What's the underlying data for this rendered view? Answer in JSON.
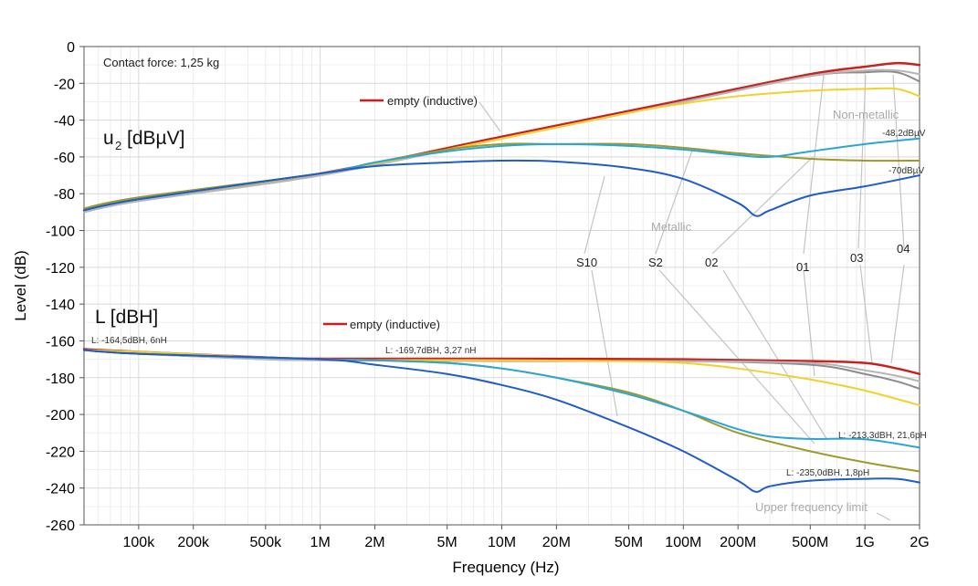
{
  "chart_data": {
    "type": "line",
    "title": "",
    "xlabel": "Frequency (Hz)",
    "ylabel": "Level (dB)",
    "xscale": "log",
    "xlim": [
      50000,
      2000000000
    ],
    "ylim": [
      -260,
      0
    ],
    "grid": true,
    "x_ticks": [
      {
        "value": 100000,
        "label": "100k"
      },
      {
        "value": 200000,
        "label": "200k"
      },
      {
        "value": 500000,
        "label": "500k"
      },
      {
        "value": 1000000,
        "label": "1M"
      },
      {
        "value": 2000000,
        "label": "2M"
      },
      {
        "value": 5000000,
        "label": "5M"
      },
      {
        "value": 10000000,
        "label": "10M"
      },
      {
        "value": 20000000,
        "label": "20M"
      },
      {
        "value": 50000000,
        "label": "50M"
      },
      {
        "value": 100000000,
        "label": "100M"
      },
      {
        "value": 200000000,
        "label": "200M"
      },
      {
        "value": 500000000,
        "label": "500M"
      },
      {
        "value": 1000000000,
        "label": "1G"
      },
      {
        "value": 2000000000,
        "label": "2G"
      }
    ],
    "y_ticks": [
      {
        "value": 0,
        "label": "0"
      },
      {
        "value": -20,
        "label": "-20"
      },
      {
        "value": -40,
        "label": "-40"
      },
      {
        "value": -60,
        "label": "-60"
      },
      {
        "value": -80,
        "label": "-80"
      },
      {
        "value": -100,
        "label": "-100"
      },
      {
        "value": -120,
        "label": "-120"
      },
      {
        "value": -140,
        "label": "-140"
      },
      {
        "value": -160,
        "label": "-160"
      },
      {
        "value": -180,
        "label": "-180"
      },
      {
        "value": -200,
        "label": "-200"
      },
      {
        "value": -220,
        "label": "-220"
      },
      {
        "value": -240,
        "label": "-240"
      },
      {
        "value": -260,
        "label": "-260"
      }
    ],
    "series": [
      {
        "name": "u2 empty (inductive)",
        "color": "#cc1f1f",
        "width": 2.5,
        "points": [
          [
            50000,
            -89
          ],
          [
            100000,
            -83
          ],
          [
            1000000,
            -69
          ],
          [
            10000000,
            -49
          ],
          [
            100000000,
            -29
          ],
          [
            500000000,
            -15
          ],
          [
            1000000000,
            -11
          ],
          [
            1500000000,
            -9
          ],
          [
            2000000000,
            -10
          ]
        ]
      },
      {
        "name": "u2 04",
        "color": "#8c8c8c",
        "width": 2,
        "points": [
          [
            50000,
            -90
          ],
          [
            100000,
            -84
          ],
          [
            1000000,
            -70
          ],
          [
            10000000,
            -50
          ],
          [
            100000000,
            -30
          ],
          [
            500000000,
            -16
          ],
          [
            1000000000,
            -14
          ],
          [
            1500000000,
            -14
          ],
          [
            2000000000,
            -19
          ]
        ]
      },
      {
        "name": "u2 03",
        "color": "#b6b6b6",
        "width": 2,
        "points": [
          [
            50000,
            -90
          ],
          [
            100000,
            -84
          ],
          [
            1000000,
            -70
          ],
          [
            10000000,
            -50
          ],
          [
            100000000,
            -30
          ],
          [
            500000000,
            -16
          ],
          [
            1000000000,
            -13
          ],
          [
            1500000000,
            -13
          ],
          [
            2000000000,
            -15
          ]
        ]
      },
      {
        "name": "u2 01",
        "color": "#f2d22a",
        "width": 2,
        "points": [
          [
            50000,
            -89
          ],
          [
            100000,
            -83
          ],
          [
            1000000,
            -69
          ],
          [
            10000000,
            -50
          ],
          [
            50000000,
            -36
          ],
          [
            100000000,
            -31
          ],
          [
            200000000,
            -27
          ],
          [
            500000000,
            -24
          ],
          [
            1000000000,
            -23
          ],
          [
            1500000000,
            -23
          ],
          [
            2000000000,
            -27
          ]
        ]
      },
      {
        "name": "u2 S2",
        "color": "#9c9a2a",
        "width": 2,
        "points": [
          [
            50000,
            -88
          ],
          [
            100000,
            -82
          ],
          [
            1000000,
            -69
          ],
          [
            2000000,
            -63
          ],
          [
            5000000,
            -56
          ],
          [
            10000000,
            -53
          ],
          [
            20000000,
            -53
          ],
          [
            50000000,
            -53
          ],
          [
            100000000,
            -55
          ],
          [
            200000000,
            -58
          ],
          [
            500000000,
            -61
          ],
          [
            1000000000,
            -62
          ],
          [
            2000000000,
            -62
          ]
        ]
      },
      {
        "name": "u2 02",
        "color": "#2aa6d6",
        "width": 2,
        "points": [
          [
            50000,
            -89
          ],
          [
            100000,
            -83
          ],
          [
            1000000,
            -69
          ],
          [
            2000000,
            -63
          ],
          [
            5000000,
            -57
          ],
          [
            10000000,
            -54
          ],
          [
            20000000,
            -53
          ],
          [
            50000000,
            -54
          ],
          [
            100000000,
            -56
          ],
          [
            200000000,
            -59
          ],
          [
            300000000,
            -60
          ],
          [
            500000000,
            -57
          ],
          [
            1000000000,
            -53
          ],
          [
            2000000000,
            -50
          ]
        ]
      },
      {
        "name": "u2 S10",
        "color": "#1f5cc8",
        "width": 2,
        "points": [
          [
            50000,
            -89
          ],
          [
            100000,
            -83
          ],
          [
            1000000,
            -69
          ],
          [
            2000000,
            -65
          ],
          [
            5000000,
            -63
          ],
          [
            10000000,
            -62
          ],
          [
            20000000,
            -62.5
          ],
          [
            50000000,
            -66
          ],
          [
            100000000,
            -72
          ],
          [
            200000000,
            -85
          ],
          [
            250000000,
            -92
          ],
          [
            300000000,
            -89
          ],
          [
            500000000,
            -81
          ],
          [
            1000000000,
            -76
          ],
          [
            2000000000,
            -70
          ]
        ]
      },
      {
        "name": "L empty (inductive)",
        "color": "#cc1f1f",
        "width": 2.5,
        "points": [
          [
            50000,
            -164.5
          ],
          [
            100000,
            -166
          ],
          [
            500000,
            -169
          ],
          [
            1000000,
            -169.7
          ],
          [
            10000000,
            -169.7
          ],
          [
            100000000,
            -170
          ],
          [
            500000000,
            -171
          ],
          [
            1000000000,
            -172
          ],
          [
            1500000000,
            -175
          ],
          [
            2000000000,
            -178
          ]
        ]
      },
      {
        "name": "L 04",
        "color": "#8c8c8c",
        "width": 2,
        "points": [
          [
            50000,
            -165
          ],
          [
            100000,
            -167
          ],
          [
            500000,
            -170
          ],
          [
            1000000,
            -170.5
          ],
          [
            10000000,
            -171
          ],
          [
            100000000,
            -171
          ],
          [
            500000000,
            -173
          ],
          [
            1000000000,
            -178
          ],
          [
            1500000000,
            -182
          ],
          [
            2000000000,
            -186
          ]
        ]
      },
      {
        "name": "L 03",
        "color": "#b6b6b6",
        "width": 2,
        "points": [
          [
            50000,
            -165
          ],
          [
            100000,
            -167
          ],
          [
            500000,
            -170
          ],
          [
            1000000,
            -170.5
          ],
          [
            10000000,
            -171
          ],
          [
            100000000,
            -171
          ],
          [
            500000000,
            -172
          ],
          [
            1000000000,
            -176
          ],
          [
            1500000000,
            -179
          ],
          [
            2000000000,
            -182
          ]
        ]
      },
      {
        "name": "L 01",
        "color": "#f2d22a",
        "width": 2,
        "points": [
          [
            50000,
            -165
          ],
          [
            100000,
            -166
          ],
          [
            1000000,
            -170
          ],
          [
            10000000,
            -170.5
          ],
          [
            50000000,
            -171
          ],
          [
            100000000,
            -172
          ],
          [
            200000000,
            -175
          ],
          [
            500000000,
            -181
          ],
          [
            1000000000,
            -187
          ],
          [
            2000000000,
            -195
          ]
        ]
      },
      {
        "name": "L S2",
        "color": "#9c9a2a",
        "width": 2,
        "points": [
          [
            50000,
            -165
          ],
          [
            100000,
            -167
          ],
          [
            1000000,
            -170
          ],
          [
            2000000,
            -170.5
          ],
          [
            5000000,
            -172
          ],
          [
            10000000,
            -175
          ],
          [
            20000000,
            -180
          ],
          [
            50000000,
            -188
          ],
          [
            100000000,
            -198
          ],
          [
            200000000,
            -210
          ],
          [
            500000000,
            -220
          ],
          [
            1000000000,
            -226
          ],
          [
            2000000000,
            -231
          ]
        ]
      },
      {
        "name": "L 02",
        "color": "#2aa6d6",
        "width": 2,
        "points": [
          [
            50000,
            -165
          ],
          [
            100000,
            -167
          ],
          [
            1000000,
            -170
          ],
          [
            2000000,
            -170.5
          ],
          [
            5000000,
            -172
          ],
          [
            10000000,
            -175
          ],
          [
            20000000,
            -180
          ],
          [
            50000000,
            -189
          ],
          [
            100000000,
            -198
          ],
          [
            200000000,
            -208
          ],
          [
            300000000,
            -212
          ],
          [
            500000000,
            -213.3
          ],
          [
            1000000000,
            -213.5
          ],
          [
            2000000000,
            -218
          ]
        ]
      },
      {
        "name": "L S10",
        "color": "#1f5cc8",
        "width": 2,
        "points": [
          [
            50000,
            -165
          ],
          [
            100000,
            -167
          ],
          [
            1000000,
            -170
          ],
          [
            2000000,
            -173
          ],
          [
            5000000,
            -178
          ],
          [
            10000000,
            -184
          ],
          [
            20000000,
            -192
          ],
          [
            50000000,
            -207
          ],
          [
            100000000,
            -220
          ],
          [
            200000000,
            -236
          ],
          [
            250000000,
            -242
          ],
          [
            300000000,
            -239
          ],
          [
            500000000,
            -236
          ],
          [
            1000000000,
            -235
          ],
          [
            1500000000,
            -235
          ],
          [
            2000000000,
            -237
          ]
        ]
      }
    ],
    "annotations": {
      "contact_force": "Contact force: 1,25 kg",
      "u2_title": "u",
      "u2_subscript": "2",
      "u2_unit": "[dBµV]",
      "L_title": "L [dBH]",
      "legend_empty_u2": "empty (inductive)",
      "legend_empty_L": "empty (inductive)",
      "non_metallic": "Non-metallic",
      "metallic": "Metallic",
      "upper_limit": "Upper frequency limit",
      "val_48": "-48,2dBµV",
      "val_70": "-70dBµV",
      "L_164": "L: -164,5dBH, 6nH",
      "L_169": "L: -169,7dBH, 3,27 nH",
      "L_213": "L: -213,3dBH, 21,6pH",
      "L_235": "L: -235,0dBH, 1,8pH",
      "label_S10": "S10",
      "label_S2": "S2",
      "label_02": "02",
      "label_01": "01",
      "label_03": "03",
      "label_04": "04"
    }
  }
}
